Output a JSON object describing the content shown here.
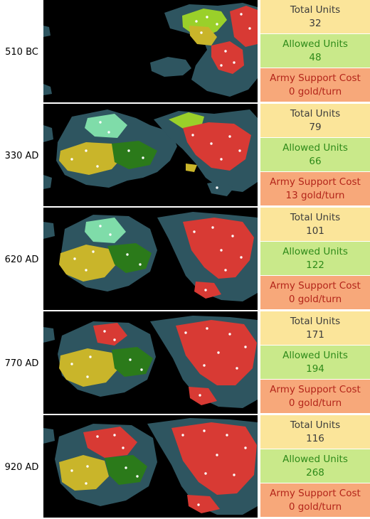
{
  "colors": {
    "total_bg": "#fbe59a",
    "allowed_bg": "#c9e98a",
    "cost_bg": "#f7a87a",
    "ocean": "#2e5560",
    "empire_red": "#d83a34",
    "empire_yellow": "#c9b52a",
    "empire_lightgreen": "#9ad02a",
    "empire_teal": "#7fdca9"
  },
  "rows": [
    {
      "era": "510 BC",
      "total_label": "Total Units",
      "total": "32",
      "allowed_label": "Allowed Units",
      "allowed": "48",
      "cost_label": "Army Support Cost",
      "cost": "0 gold/turn"
    },
    {
      "era": "330 AD",
      "total_label": "Total Units",
      "total": "79",
      "allowed_label": "Allowed Units",
      "allowed": "66",
      "cost_label": "Army Support Cost",
      "cost": "13 gold/turn"
    },
    {
      "era": "620 AD",
      "total_label": "Total Units",
      "total": "101",
      "allowed_label": "Allowed Units",
      "allowed": "122",
      "cost_label": "Army Support Cost",
      "cost": "0 gold/turn"
    },
    {
      "era": "770 AD",
      "total_label": "Total Units",
      "total": "171",
      "allowed_label": "Allowed Units",
      "allowed": "194",
      "cost_label": "Army Support Cost",
      "cost": "0 gold/turn"
    },
    {
      "era": "920 AD",
      "total_label": "Total Units",
      "total": "116",
      "allowed_label": "Allowed Units",
      "allowed": "268",
      "cost_label": "Army Support Cost",
      "cost": "0 gold/turn"
    }
  ]
}
